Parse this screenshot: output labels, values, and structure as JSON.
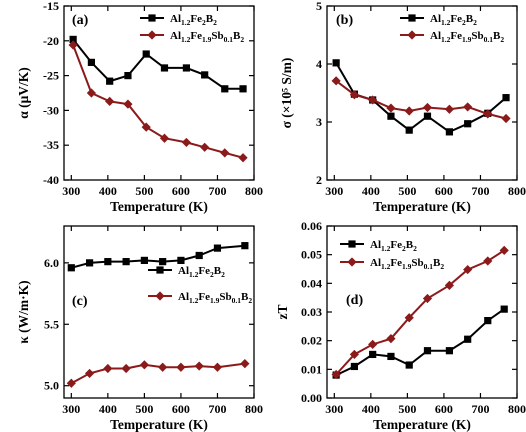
{
  "colors": {
    "series_a": "#000000",
    "series_b": "#8b1a1a"
  },
  "chart_data": [
    {
      "id": "a",
      "type": "line",
      "panel_label": "(a)",
      "xlabel": "Temperature (K)",
      "ylabel": "α (μV/K)",
      "xlim": [
        280,
        800
      ],
      "ylim": [
        -40,
        -15
      ],
      "xticks": [
        300,
        400,
        500,
        600,
        700,
        800
      ],
      "yticks": [
        -40,
        -35,
        -30,
        -25,
        -20,
        -15
      ],
      "legend_position": "top-right",
      "series": [
        {
          "name": "Al1.2Fe2B2",
          "marker": "square",
          "color": "#000000",
          "x": [
            305,
            355,
            405,
            455,
            505,
            555,
            615,
            665,
            720,
            770
          ],
          "y": [
            -19.8,
            -23.1,
            -25.8,
            -25.0,
            -21.9,
            -23.9,
            -23.9,
            -24.9,
            -26.9,
            -26.9
          ]
        },
        {
          "name": "Al1.2Fe1.9Sb0.1B2",
          "marker": "diamond",
          "color": "#8b1a1a",
          "x": [
            305,
            355,
            405,
            455,
            505,
            555,
            615,
            665,
            720,
            770
          ],
          "y": [
            -20.6,
            -27.5,
            -28.7,
            -29.1,
            -32.4,
            -34.0,
            -34.6,
            -35.3,
            -36.1,
            -36.8
          ]
        }
      ]
    },
    {
      "id": "b",
      "type": "line",
      "panel_label": "(b)",
      "xlabel": "Temperature (K)",
      "ylabel": "σ (×10⁵ S/m)",
      "xlim": [
        280,
        800
      ],
      "ylim": [
        2,
        5
      ],
      "xticks": [
        300,
        400,
        500,
        600,
        700,
        800
      ],
      "yticks": [
        2,
        3,
        4,
        5
      ],
      "legend_position": "top-right",
      "series": [
        {
          "name": "Al1.2Fe2B2",
          "marker": "square",
          "color": "#000000",
          "x": [
            305,
            355,
            405,
            455,
            505,
            555,
            615,
            665,
            720,
            770
          ],
          "y": [
            4.02,
            3.48,
            3.38,
            3.1,
            2.86,
            3.1,
            2.83,
            2.97,
            3.15,
            3.42
          ]
        },
        {
          "name": "Al1.2Fe1.9Sb0.1B2",
          "marker": "diamond",
          "color": "#8b1a1a",
          "x": [
            305,
            355,
            405,
            455,
            505,
            555,
            615,
            665,
            720,
            770
          ],
          "y": [
            3.71,
            3.47,
            3.38,
            3.24,
            3.19,
            3.25,
            3.22,
            3.26,
            3.14,
            3.06
          ]
        }
      ]
    },
    {
      "id": "c",
      "type": "line",
      "panel_label": "(c)",
      "xlabel": "Temperature (K)",
      "ylabel": "κ (W/m·K)",
      "xlim": [
        280,
        800
      ],
      "ylim": [
        4.9,
        6.3
      ],
      "xticks": [
        300,
        400,
        500,
        600,
        700,
        800
      ],
      "yticks": [
        5.0,
        5.5,
        6.0
      ],
      "legend_position": "center-right",
      "series": [
        {
          "name": "Al1.2Fe2B2",
          "marker": "square",
          "color": "#000000",
          "x": [
            300,
            350,
            400,
            450,
            500,
            550,
            600,
            650,
            700,
            775
          ],
          "y": [
            5.96,
            6.0,
            6.01,
            6.01,
            6.02,
            6.01,
            6.02,
            6.06,
            6.12,
            6.14
          ]
        },
        {
          "name": "Al1.2Fe1.9Sb0.1B2",
          "marker": "diamond",
          "color": "#8b1a1a",
          "x": [
            300,
            350,
            400,
            450,
            500,
            550,
            600,
            650,
            700,
            775
          ],
          "y": [
            5.02,
            5.1,
            5.14,
            5.14,
            5.17,
            5.15,
            5.15,
            5.16,
            5.15,
            5.18
          ]
        }
      ]
    },
    {
      "id": "d",
      "type": "line",
      "panel_label": "(d)",
      "xlabel": "Temperature (K)",
      "ylabel": "zT",
      "xlim": [
        280,
        800
      ],
      "ylim": [
        0.0,
        0.06
      ],
      "xticks": [
        300,
        400,
        500,
        600,
        700,
        800
      ],
      "yticks": [
        0.0,
        0.01,
        0.02,
        0.03,
        0.04,
        0.05,
        0.06
      ],
      "legend_position": "top-left",
      "series": [
        {
          "name": "Al1.2Fe2B2",
          "marker": "square",
          "color": "#000000",
          "x": [
            305,
            355,
            405,
            455,
            505,
            555,
            615,
            665,
            720,
            765
          ],
          "y": [
            0.008,
            0.011,
            0.0152,
            0.0145,
            0.0115,
            0.0165,
            0.0165,
            0.0205,
            0.027,
            0.031
          ]
        },
        {
          "name": "Al1.2Fe1.9Sb0.1B2",
          "marker": "diamond",
          "color": "#8b1a1a",
          "x": [
            305,
            355,
            405,
            455,
            505,
            555,
            615,
            665,
            720,
            765
          ],
          "y": [
            0.0082,
            0.0152,
            0.0187,
            0.0207,
            0.028,
            0.0347,
            0.0393,
            0.0448,
            0.0478,
            0.0515
          ]
        }
      ]
    }
  ],
  "legend": {
    "series_a": {
      "base": "Al",
      "s1": "1.2",
      "m1": "Fe",
      "s2": "2",
      "m2": "B",
      "s3": "2"
    },
    "series_b": {
      "base": "Al",
      "s1": "1.2",
      "m1": "Fe",
      "s2": "1.9",
      "m2": "Sb",
      "s3": "0.1",
      "m3": "B",
      "s4": "2"
    }
  }
}
